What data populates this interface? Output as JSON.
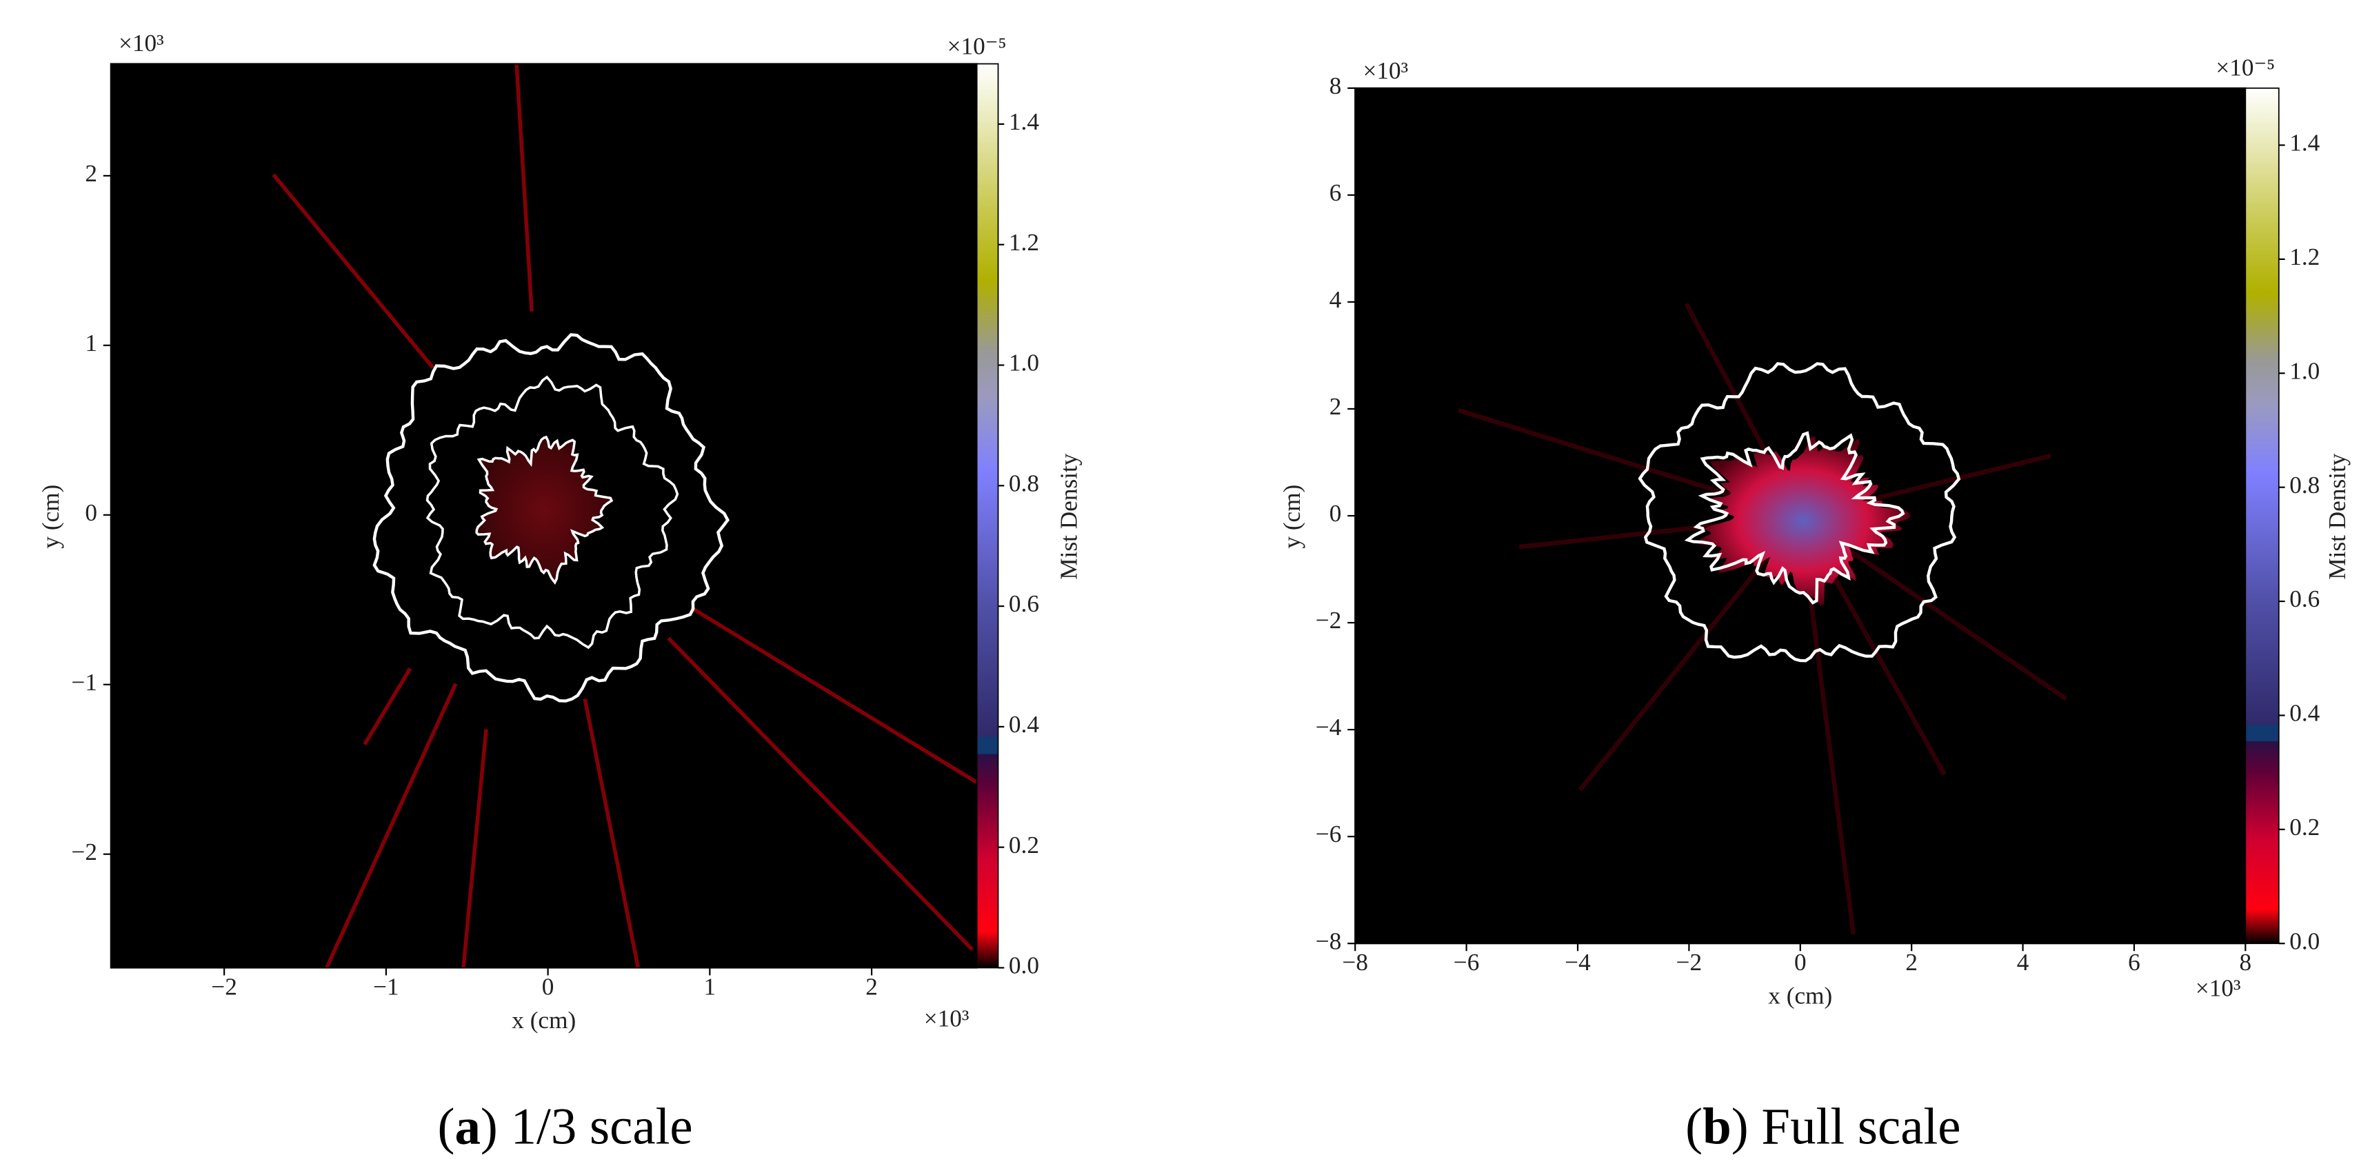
{
  "chart_data": [
    {
      "type": "heatmap",
      "xlabel": "x (cm)",
      "ylabel": "y (cm)",
      "x_multiplier": "×10³",
      "y_multiplier": "×10³",
      "colorbar_label": "Mist Density",
      "colorbar_multiplier": "×10⁻⁵",
      "xlim": [
        -2.7,
        2.65
      ],
      "ylim": [
        -2.67,
        2.66
      ],
      "xticks": [
        {
          "value": -2,
          "label": "−2"
        },
        {
          "value": -1,
          "label": "−1"
        },
        0,
        1,
        2
      ],
      "yticks": [
        {
          "value": -2,
          "label": "−2"
        },
        {
          "value": -1,
          "label": "−1"
        },
        0,
        1,
        2
      ],
      "clim": [
        0,
        1.5
      ],
      "cticks": [
        {
          "value": 0,
          "label": "0.0"
        },
        {
          "value": 0.2,
          "label": "0.2"
        },
        {
          "value": 0.4,
          "label": "0.4"
        },
        {
          "value": 0.6,
          "label": "0.6"
        },
        {
          "value": 0.8,
          "label": "0.8"
        },
        {
          "value": 1,
          "label": "1.0"
        },
        {
          "value": 1.2,
          "label": "1.2"
        },
        {
          "value": 1.4,
          "label": "1.4"
        }
      ],
      "caption": [
        "(",
        "a",
        ")",
        " 1/3 scale"
      ]
    },
    {
      "type": "heatmap",
      "xlabel": "x (cm)",
      "ylabel": "y (cm)",
      "x_multiplier": "×10³",
      "y_multiplier": "×10³",
      "colorbar_label": "Mist Density",
      "colorbar_multiplier": "×10⁻⁵",
      "xlim": [
        -8,
        8
      ],
      "ylim": [
        -8,
        8
      ],
      "xticks": [
        {
          "value": -8,
          "label": "−8"
        },
        {
          "value": -6,
          "label": "−6"
        },
        {
          "value": -4,
          "label": "−4"
        },
        {
          "value": -2,
          "label": "−2"
        },
        0,
        2,
        4,
        6,
        8
      ],
      "yticks": [
        {
          "value": -8,
          "label": "−8"
        },
        {
          "value": -6,
          "label": "−6"
        },
        {
          "value": -4,
          "label": "−4"
        },
        {
          "value": -2,
          "label": "−2"
        },
        0,
        2,
        4,
        6,
        8
      ],
      "clim": [
        0,
        1.5
      ],
      "cticks": [
        {
          "value": 0,
          "label": "0.0"
        },
        {
          "value": 0.2,
          "label": "0.2"
        },
        {
          "value": 0.4,
          "label": "0.4"
        },
        {
          "value": 0.6,
          "label": "0.6"
        },
        {
          "value": 0.8,
          "label": "0.8"
        },
        {
          "value": 1,
          "label": "1.0"
        },
        {
          "value": 1.2,
          "label": "1.2"
        },
        {
          "value": 1.4,
          "label": "1.4"
        }
      ],
      "caption": [
        "(",
        "b",
        ")",
        " Full scale"
      ]
    }
  ]
}
